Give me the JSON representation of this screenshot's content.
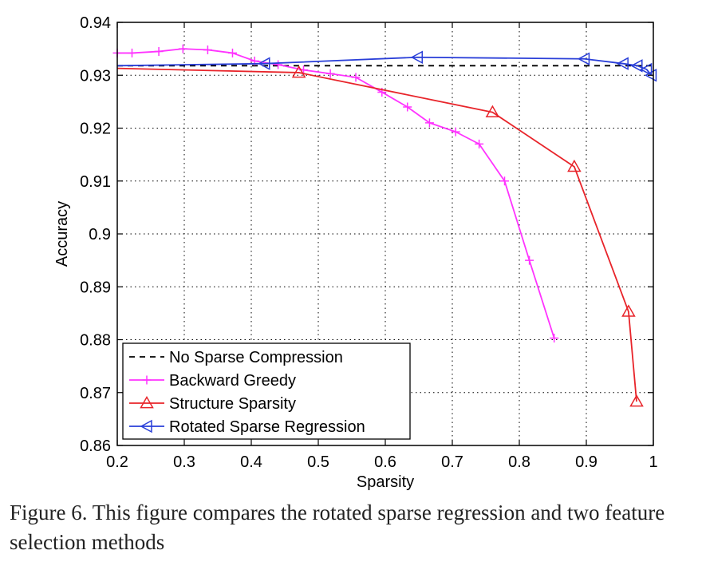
{
  "chart_data": {
    "type": "line",
    "xlabel": "Sparsity",
    "ylabel": "Accuracy",
    "xlim": [
      0.2,
      1.0
    ],
    "ylim": [
      0.86,
      0.94
    ],
    "xticks": [
      0.2,
      0.3,
      0.4,
      0.5,
      0.6,
      0.7,
      0.8,
      0.9,
      1.0
    ],
    "xtick_labels": [
      "0.2",
      "0.3",
      "0.4",
      "0.5",
      "0.6",
      "0.7",
      "0.8",
      "0.9",
      "1"
    ],
    "yticks": [
      0.86,
      0.87,
      0.88,
      0.89,
      0.9,
      0.91,
      0.92,
      0.93,
      0.94
    ],
    "ytick_labels": [
      "0.86",
      "0.87",
      "0.88",
      "0.89",
      "0.9",
      "0.91",
      "0.92",
      "0.93",
      "0.94"
    ],
    "grid": true,
    "legend_position": "bottom-left",
    "series": [
      {
        "name": "No Sparse Compression",
        "color": "#000000",
        "dash": "dashed",
        "marker": "none",
        "x": [
          0.2,
          1.0
        ],
        "y": [
          0.9318,
          0.9318
        ]
      },
      {
        "name": "Backward Greedy",
        "color": "#ff33ff",
        "dash": "solid",
        "marker": "plus",
        "x": [
          0.2,
          0.222,
          0.262,
          0.298,
          0.335,
          0.372,
          0.405,
          0.44,
          0.478,
          0.518,
          0.556,
          0.595,
          0.633,
          0.666,
          0.705,
          0.74,
          0.778,
          0.815,
          0.852
        ],
        "y": [
          0.9342,
          0.9342,
          0.9345,
          0.935,
          0.9348,
          0.9342,
          0.9327,
          0.932,
          0.931,
          0.9303,
          0.9296,
          0.9268,
          0.924,
          0.921,
          0.9193,
          0.917,
          0.91,
          0.895,
          0.8803
        ]
      },
      {
        "name": "Structure Sparsity",
        "color": "#e8242a",
        "dash": "solid",
        "marker": "triangle-up",
        "x": [
          0.2,
          0.471,
          0.76,
          0.882,
          0.963,
          0.975
        ],
        "y": [
          0.9313,
          0.9305,
          0.923,
          0.9127,
          0.8853,
          0.8683
        ]
      },
      {
        "name": "Rotated Sparse Regression",
        "color": "#2a3fd8",
        "dash": "solid",
        "marker": "triangle-left",
        "x": [
          0.2,
          0.42,
          0.648,
          0.897,
          0.955,
          0.976,
          0.99,
          0.997
        ],
        "y": [
          0.9318,
          0.9322,
          0.9334,
          0.9331,
          0.9322,
          0.9318,
          0.9311,
          0.93
        ]
      }
    ]
  },
  "caption": "Figure 6. This figure compares the rotated sparse regression and two feature selection methods"
}
